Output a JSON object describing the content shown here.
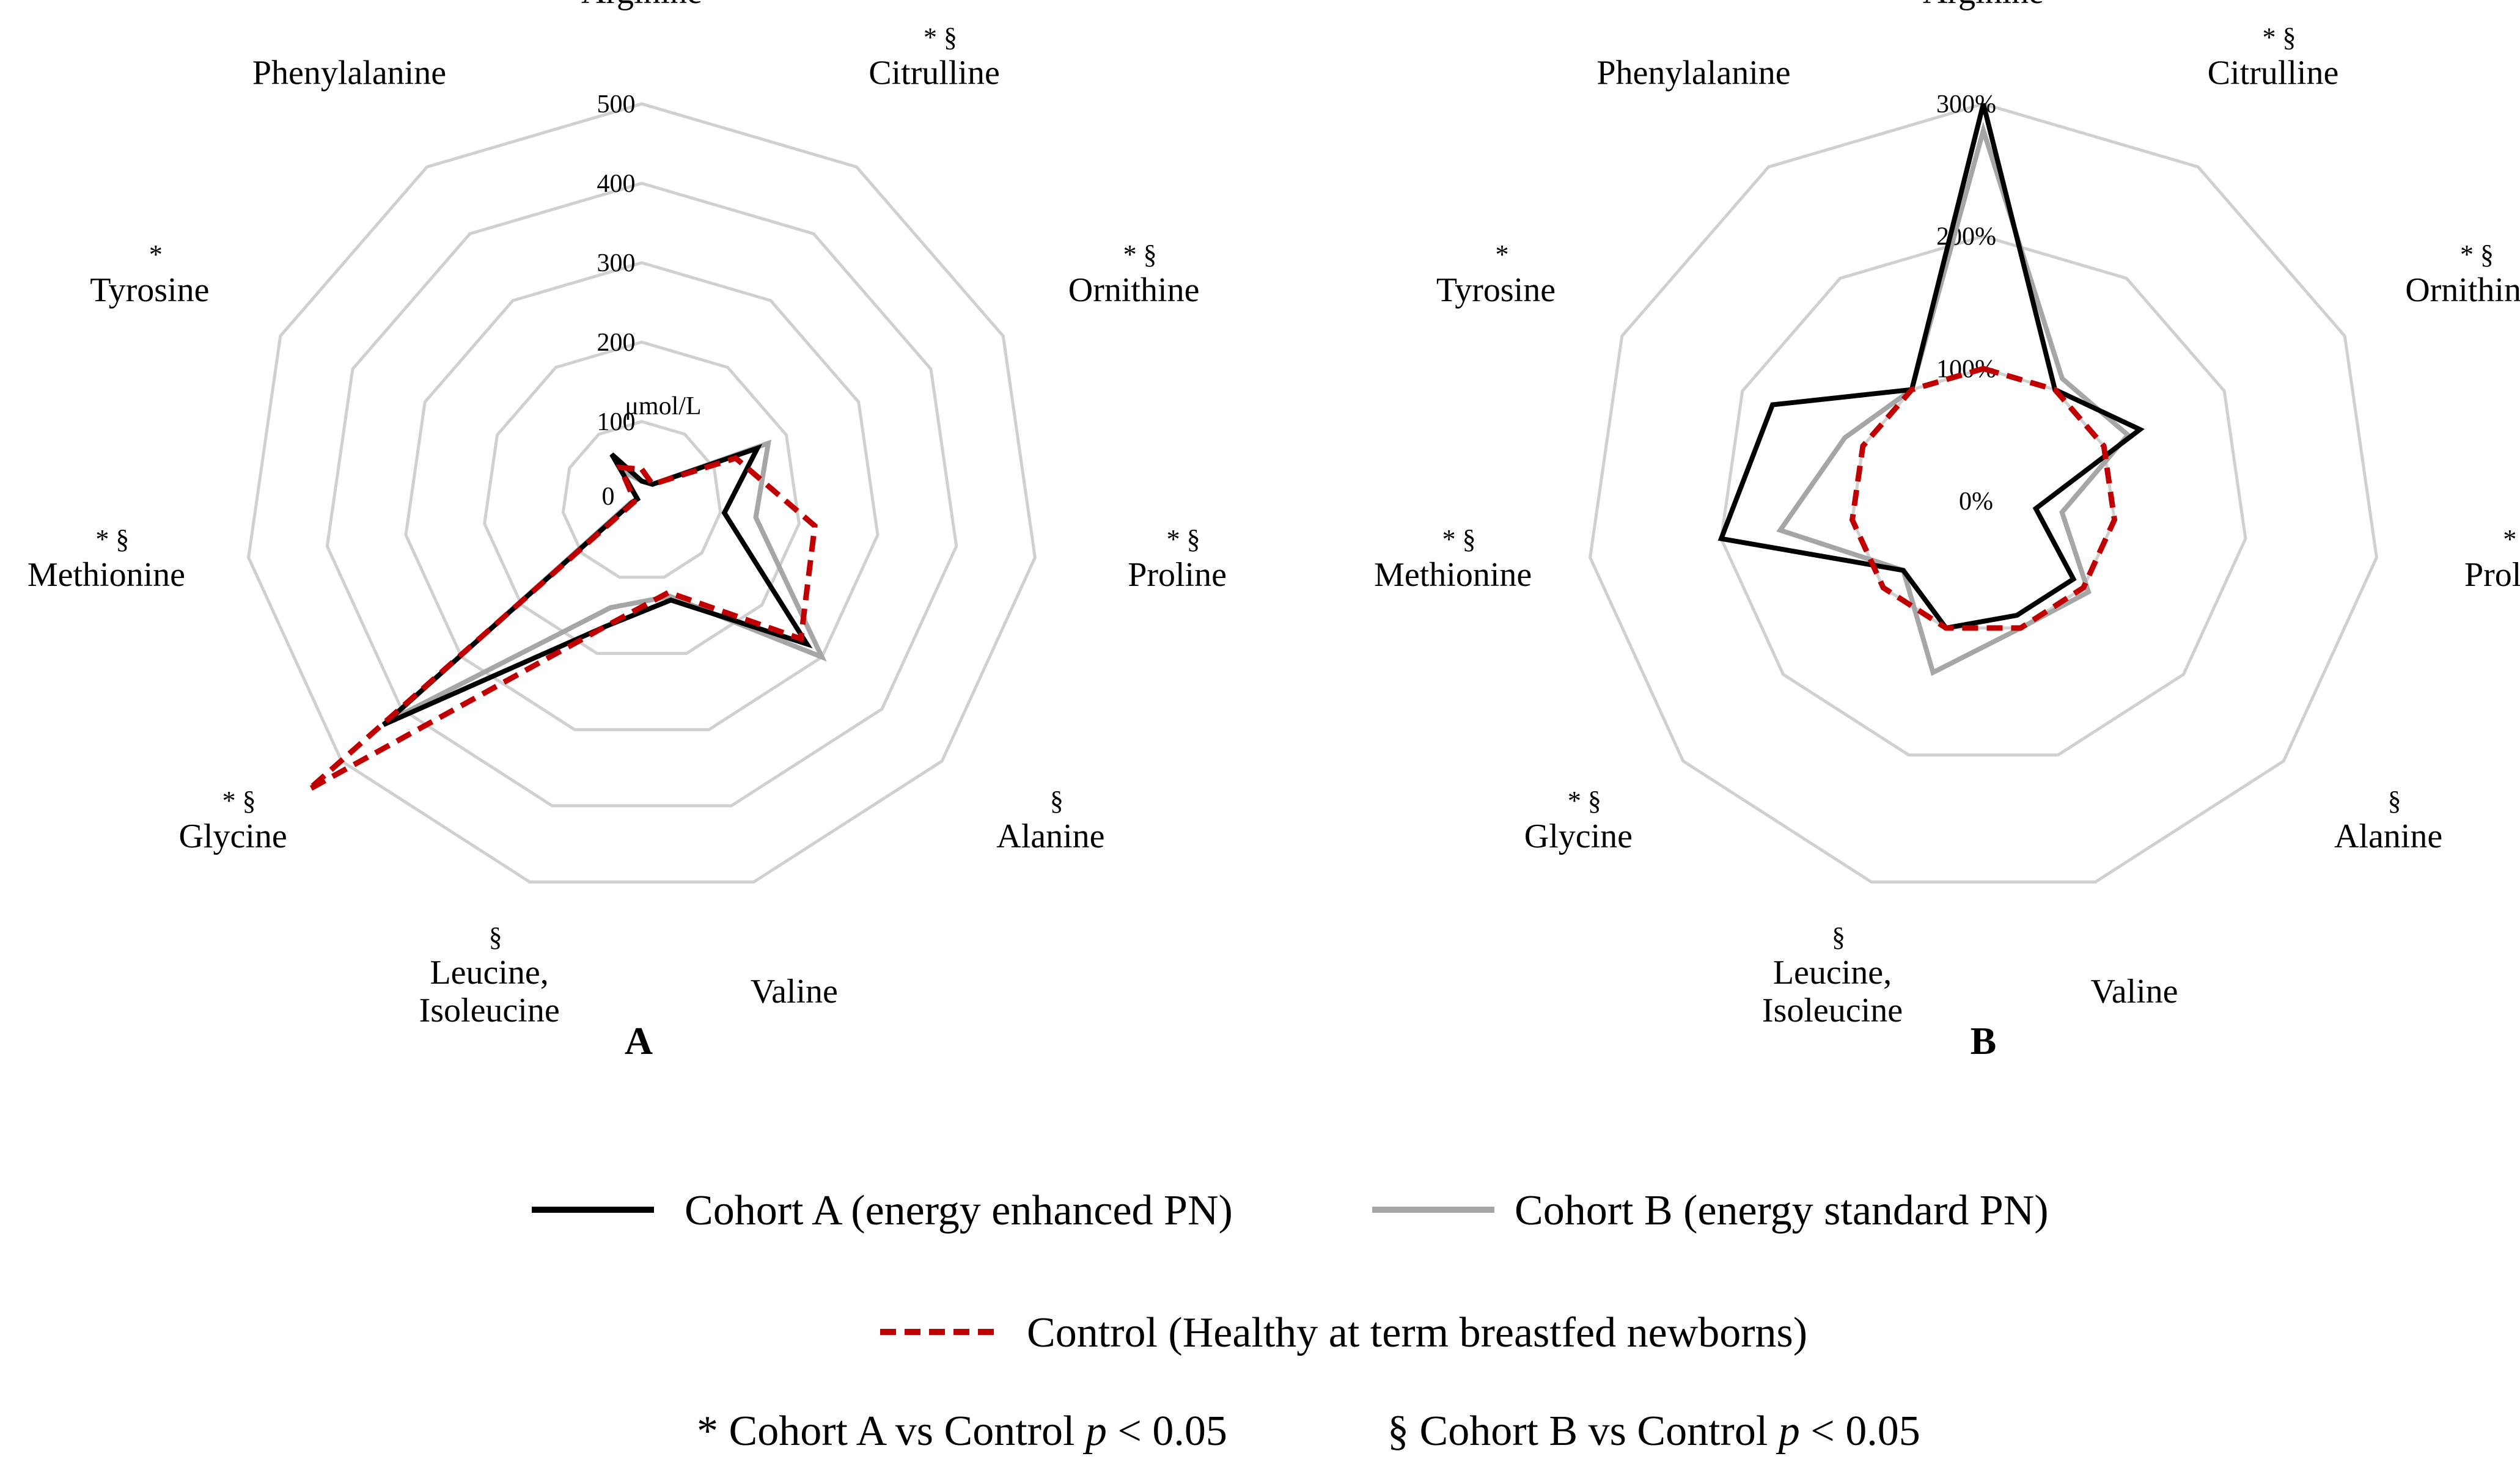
{
  "legend": {
    "cohort_a": "Cohort A (energy enhanced PN)",
    "cohort_b": "Cohort B (energy standard PN)",
    "control": "Control (Healthy at term breastfed newborns)",
    "note_star_prefix": "* Cohort A vs Control ",
    "note_sect_prefix": "§ Cohort B vs Control ",
    "p_symbol": "p",
    "p_suffix": " < 0.05"
  },
  "colors": {
    "cohort_a": "#000000",
    "cohort_b": "#a6a6a6",
    "control": "#c00000",
    "grid": "#d0d0d0"
  },
  "chart_data": [
    {
      "type": "radar",
      "panel": "A",
      "unit_label": "μmol/L",
      "range": [
        0,
        500
      ],
      "ticks": [
        "0",
        "100",
        "200",
        "300",
        "400",
        "500"
      ],
      "tick_values": [
        0,
        100,
        200,
        300,
        400,
        500
      ],
      "axes": [
        "Arginine",
        "Citrulline",
        "Ornithine",
        "Proline",
        "Alanine",
        "Valine",
        [
          "Leucine,",
          "Isoleucine"
        ],
        "Glycine",
        "Methionine",
        "Tyrosine",
        "Phenylalanine"
      ],
      "significance": [
        "* §",
        "* §",
        "* §",
        "* §",
        "§",
        "",
        "§",
        "* §",
        "* §",
        "*",
        ""
      ],
      "series": [
        {
          "name": "Cohort A (energy enhanced PN)",
          "key": "cohort_a",
          "values": [
            25,
            25,
            160,
            105,
            275,
            130,
            165,
            430,
            12,
            6,
            70
          ]
        },
        {
          "name": "Cohort B (energy standard PN)",
          "key": "cohort_b",
          "values": [
            25,
            25,
            175,
            145,
            300,
            125,
            140,
            425,
            14,
            6,
            45
          ]
        },
        {
          "name": "Control (Healthy at term breastfed newborns)",
          "key": "control",
          "values": [
            40,
            25,
            130,
            220,
            265,
            120,
            165,
            555,
            10,
            12,
            50
          ]
        }
      ]
    },
    {
      "type": "radar",
      "panel": "B",
      "unit_label": "",
      "range": [
        0,
        300
      ],
      "ticks": [
        "0%",
        "100%",
        "200%",
        "300%"
      ],
      "tick_values": [
        0,
        100,
        200,
        300
      ],
      "axes": [
        "Arginine",
        "Citrulline",
        "Ornithine",
        "Proline",
        "Alanine",
        "Valine",
        [
          "Leucine,",
          "Isoleucine"
        ],
        "Glycine",
        "Methionine",
        "Tyrosine",
        "Phenylalanine"
      ],
      "significance": [
        "* §",
        "* §",
        "* §",
        "* §",
        "§",
        "",
        "§",
        "* §",
        "* §",
        "*",
        ""
      ],
      "series": [
        {
          "name": "Cohort A (energy enhanced PN)",
          "key": "cohort_a",
          "values": [
            300,
            100,
            130,
            40,
            90,
            90,
            100,
            80,
            200,
            175,
            100
          ]
        },
        {
          "name": "Cohort B (energy standard PN)",
          "key": "cohort_b",
          "values": [
            280,
            110,
            120,
            60,
            105,
            100,
            135,
            80,
            155,
            115,
            100
          ]
        },
        {
          "name": "Control (Healthy at term breastfed newborns)",
          "key": "control",
          "values": [
            100,
            100,
            100,
            100,
            100,
            100,
            100,
            100,
            100,
            100,
            100
          ]
        }
      ]
    }
  ]
}
